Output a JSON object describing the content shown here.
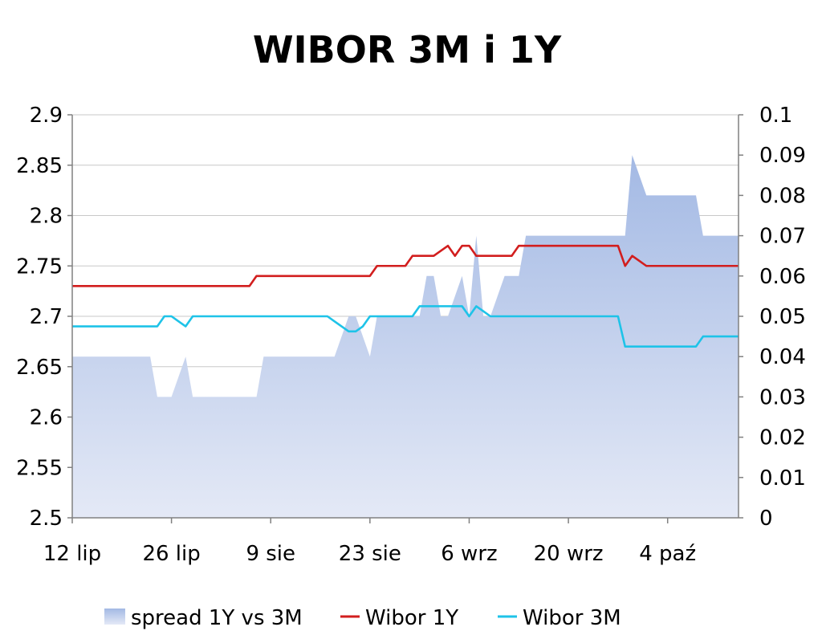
{
  "chart_data": {
    "type": "line",
    "title": "WIBOR 3M i 1Y",
    "x_tick_labels": [
      "12 lip",
      "26 lip",
      "9 sie",
      "23 sie",
      "6 wrz",
      "20 wrz",
      "4 paź"
    ],
    "x_tick_days": [
      0,
      14,
      28,
      42,
      56,
      70,
      84
    ],
    "x": [
      0,
      1,
      2,
      3,
      4,
      5,
      6,
      7,
      8,
      9,
      10,
      11,
      12,
      13,
      14,
      15,
      16,
      17,
      18,
      19,
      20,
      21,
      22,
      23,
      24,
      25,
      26,
      27,
      28,
      29,
      30,
      31,
      32,
      33,
      34,
      35,
      36,
      37,
      38,
      39,
      40,
      41,
      42,
      43,
      44,
      45,
      46,
      47,
      48,
      49,
      50,
      51,
      52,
      53,
      54,
      55,
      56,
      57,
      58,
      59,
      60,
      61,
      62,
      63,
      64,
      65,
      66,
      67,
      68,
      69,
      70,
      71,
      72,
      73,
      74,
      75,
      76,
      77,
      78,
      79,
      80,
      81,
      82,
      83,
      84,
      85,
      86,
      87,
      88,
      89,
      90,
      91,
      92,
      93,
      94
    ],
    "y_left": {
      "min": 2.5,
      "max": 2.9,
      "step": 0.05,
      "tick_labels": [
        "2.5",
        "2.55",
        "2.6",
        "2.65",
        "2.7",
        "2.75",
        "2.8",
        "2.85",
        "2.9"
      ]
    },
    "y_right": {
      "min": 0,
      "max": 0.1,
      "step": 0.01,
      "tick_labels": [
        "0",
        "0.01",
        "0.02",
        "0.03",
        "0.04",
        "0.05",
        "0.06",
        "0.07",
        "0.08",
        "0.09",
        "0.1"
      ]
    },
    "grid": true,
    "legend_position": "bottom",
    "series": [
      {
        "name": "spread 1Y vs 3M",
        "kind": "area",
        "axis": "right",
        "values": [
          0.04,
          0.04,
          0.04,
          0.04,
          0.04,
          0.04,
          0.04,
          0.04,
          0.04,
          0.04,
          0.04,
          0.04,
          0.03,
          0.03,
          0.03,
          0.035,
          0.04,
          0.03,
          0.03,
          0.03,
          0.03,
          0.03,
          0.03,
          0.03,
          0.03,
          0.03,
          0.03,
          0.04,
          0.04,
          0.04,
          0.04,
          0.04,
          0.04,
          0.04,
          0.04,
          0.04,
          0.04,
          0.04,
          0.045,
          0.05,
          0.05,
          0.045,
          0.04,
          0.05,
          0.05,
          0.05,
          0.05,
          0.05,
          0.05,
          0.05,
          0.06,
          0.06,
          0.05,
          0.05,
          0.055,
          0.06,
          0.05,
          0.07,
          0.05,
          0.05,
          0.055,
          0.06,
          0.06,
          0.06,
          0.07,
          0.07,
          0.07,
          0.07,
          0.07,
          0.07,
          0.07,
          0.07,
          0.07,
          0.07,
          0.07,
          0.07,
          0.07,
          0.07,
          0.07,
          0.09,
          0.085,
          0.08,
          0.08,
          0.08,
          0.08,
          0.08,
          0.08,
          0.08,
          0.08,
          0.07,
          0.07,
          0.07,
          0.07,
          0.07,
          0.07
        ],
        "fill_top": "#a3b9e4",
        "fill_bottom": "#e4e9f6"
      },
      {
        "name": "Wibor 1Y",
        "kind": "line",
        "axis": "left",
        "color": "#d21e1e",
        "values": [
          2.73,
          2.73,
          2.73,
          2.73,
          2.73,
          2.73,
          2.73,
          2.73,
          2.73,
          2.73,
          2.73,
          2.73,
          2.73,
          2.73,
          2.73,
          2.73,
          2.73,
          2.73,
          2.73,
          2.73,
          2.73,
          2.73,
          2.73,
          2.73,
          2.73,
          2.73,
          2.74,
          2.74,
          2.74,
          2.74,
          2.74,
          2.74,
          2.74,
          2.74,
          2.74,
          2.74,
          2.74,
          2.74,
          2.74,
          2.74,
          2.74,
          2.74,
          2.74,
          2.75,
          2.75,
          2.75,
          2.75,
          2.75,
          2.76,
          2.76,
          2.76,
          2.76,
          2.765,
          2.77,
          2.76,
          2.77,
          2.77,
          2.76,
          2.76,
          2.76,
          2.76,
          2.76,
          2.76,
          2.77,
          2.77,
          2.77,
          2.77,
          2.77,
          2.77,
          2.77,
          2.77,
          2.77,
          2.77,
          2.77,
          2.77,
          2.77,
          2.77,
          2.77,
          2.75,
          2.76,
          2.755,
          2.75,
          2.75,
          2.75,
          2.75,
          2.75,
          2.75,
          2.75,
          2.75,
          2.75,
          2.75,
          2.75,
          2.75,
          2.75,
          2.75
        ]
      },
      {
        "name": "Wibor 3M",
        "kind": "line",
        "axis": "left",
        "color": "#1ec3e8",
        "values": [
          2.69,
          2.69,
          2.69,
          2.69,
          2.69,
          2.69,
          2.69,
          2.69,
          2.69,
          2.69,
          2.69,
          2.69,
          2.69,
          2.7,
          2.7,
          2.695,
          2.69,
          2.7,
          2.7,
          2.7,
          2.7,
          2.7,
          2.7,
          2.7,
          2.7,
          2.7,
          2.7,
          2.7,
          2.7,
          2.7,
          2.7,
          2.7,
          2.7,
          2.7,
          2.7,
          2.7,
          2.7,
          2.695,
          2.69,
          2.685,
          2.685,
          2.69,
          2.7,
          2.7,
          2.7,
          2.7,
          2.7,
          2.7,
          2.7,
          2.71,
          2.71,
          2.71,
          2.71,
          2.71,
          2.71,
          2.71,
          2.7,
          2.71,
          2.705,
          2.7,
          2.7,
          2.7,
          2.7,
          2.7,
          2.7,
          2.7,
          2.7,
          2.7,
          2.7,
          2.7,
          2.7,
          2.7,
          2.7,
          2.7,
          2.7,
          2.7,
          2.7,
          2.7,
          2.67,
          2.67,
          2.67,
          2.67,
          2.67,
          2.67,
          2.67,
          2.67,
          2.67,
          2.67,
          2.67,
          2.68,
          2.68,
          2.68,
          2.68,
          2.68,
          2.68
        ]
      }
    ]
  }
}
